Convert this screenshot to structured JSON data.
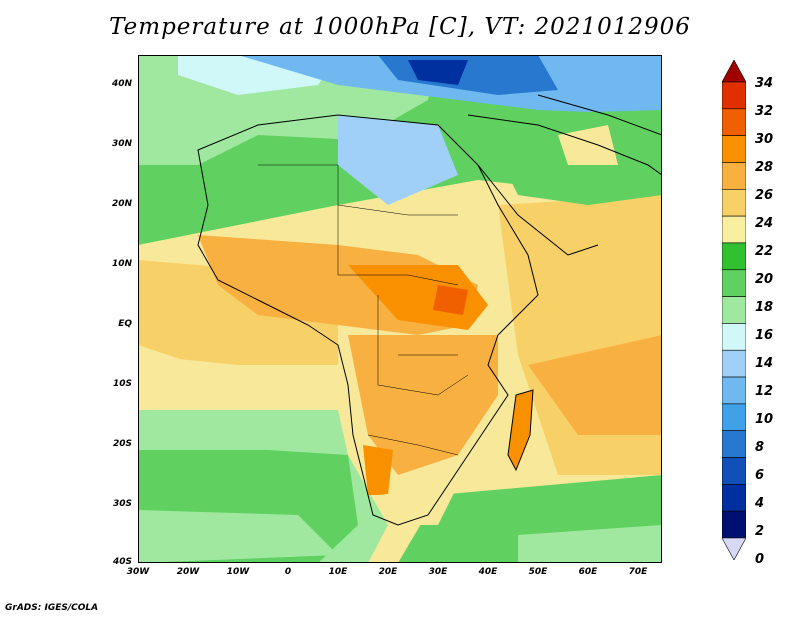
{
  "title": "Temperature at 1000hPa [C], VT: 2021012906",
  "credit": "GrADS: IGES/COLA",
  "map": {
    "lon_range": [
      -30,
      75
    ],
    "lat_range": [
      -40,
      45
    ],
    "lat_ticks": [
      "40N",
      "30N",
      "20N",
      "10N",
      "EQ",
      "10S",
      "20S",
      "30S",
      "40S"
    ],
    "lon_ticks": [
      "30W",
      "20W",
      "10W",
      "0",
      "10E",
      "20E",
      "30E",
      "40E",
      "50E",
      "60E",
      "70E"
    ]
  },
  "colorbar": {
    "levels": [
      "34",
      "32",
      "30",
      "28",
      "26",
      "24",
      "22",
      "20",
      "18",
      "16",
      "14",
      "12",
      "10",
      "8",
      "6",
      "4",
      "2",
      "0"
    ],
    "colors": [
      "#a00000",
      "#e03000",
      "#f06000",
      "#f89000",
      "#f8b040",
      "#f8d068",
      "#f8f0a0",
      "#30c030",
      "#60d060",
      "#a0e8a0",
      "#d0f8f8",
      "#a0d0f8",
      "#70b8f0",
      "#40a0e8",
      "#2878d0",
      "#1050b8",
      "#0030a0",
      "#001070",
      "#d8d8f8"
    ]
  }
}
